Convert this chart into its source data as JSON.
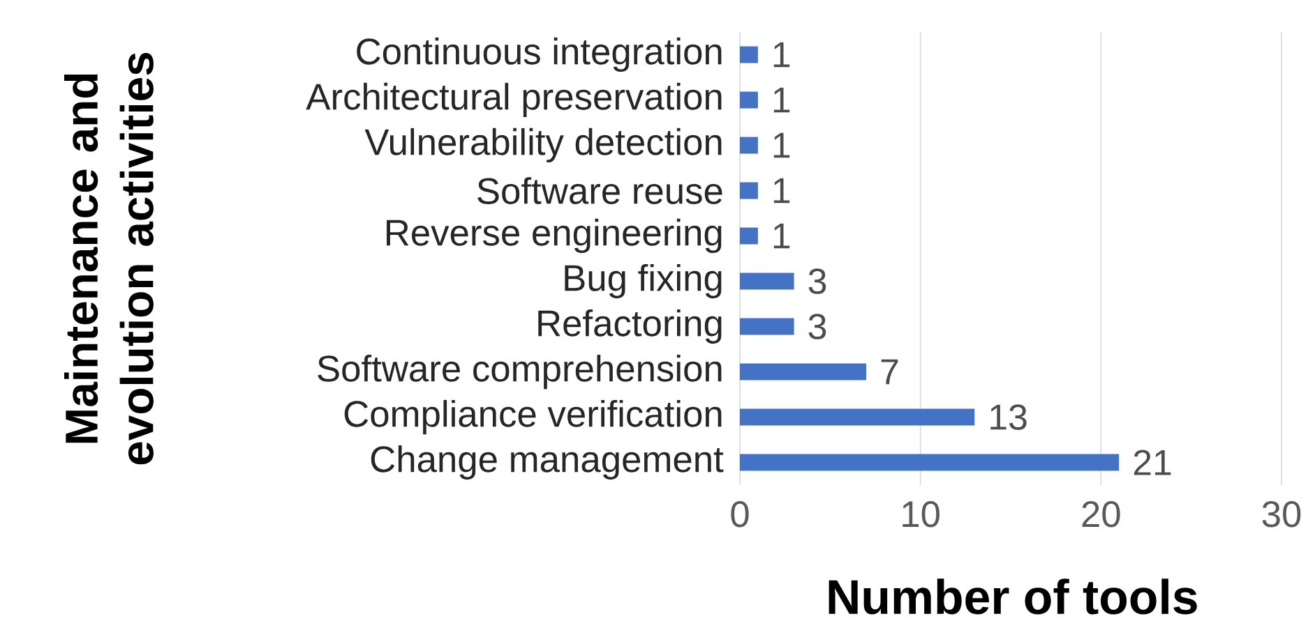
{
  "chart_data": {
    "type": "bar",
    "orientation": "horizontal",
    "xlabel": "Number of tools",
    "ylabel": "Maintenance and evolution activities",
    "categories": [
      "Continuous integration",
      "Architectural preservation",
      "Vulnerability detection",
      "Software reuse",
      "Reverse engineering",
      "Bug fixing",
      "Refactoring",
      "Software comprehension",
      "Compliance verification",
      "Change management"
    ],
    "values": [
      1,
      1,
      1,
      1,
      1,
      3,
      3,
      7,
      13,
      21
    ],
    "color": "#4472c4",
    "xlim": [
      0,
      30
    ],
    "xticks": [
      0,
      10,
      20,
      30
    ],
    "grid": "x",
    "data_labels": true
  }
}
